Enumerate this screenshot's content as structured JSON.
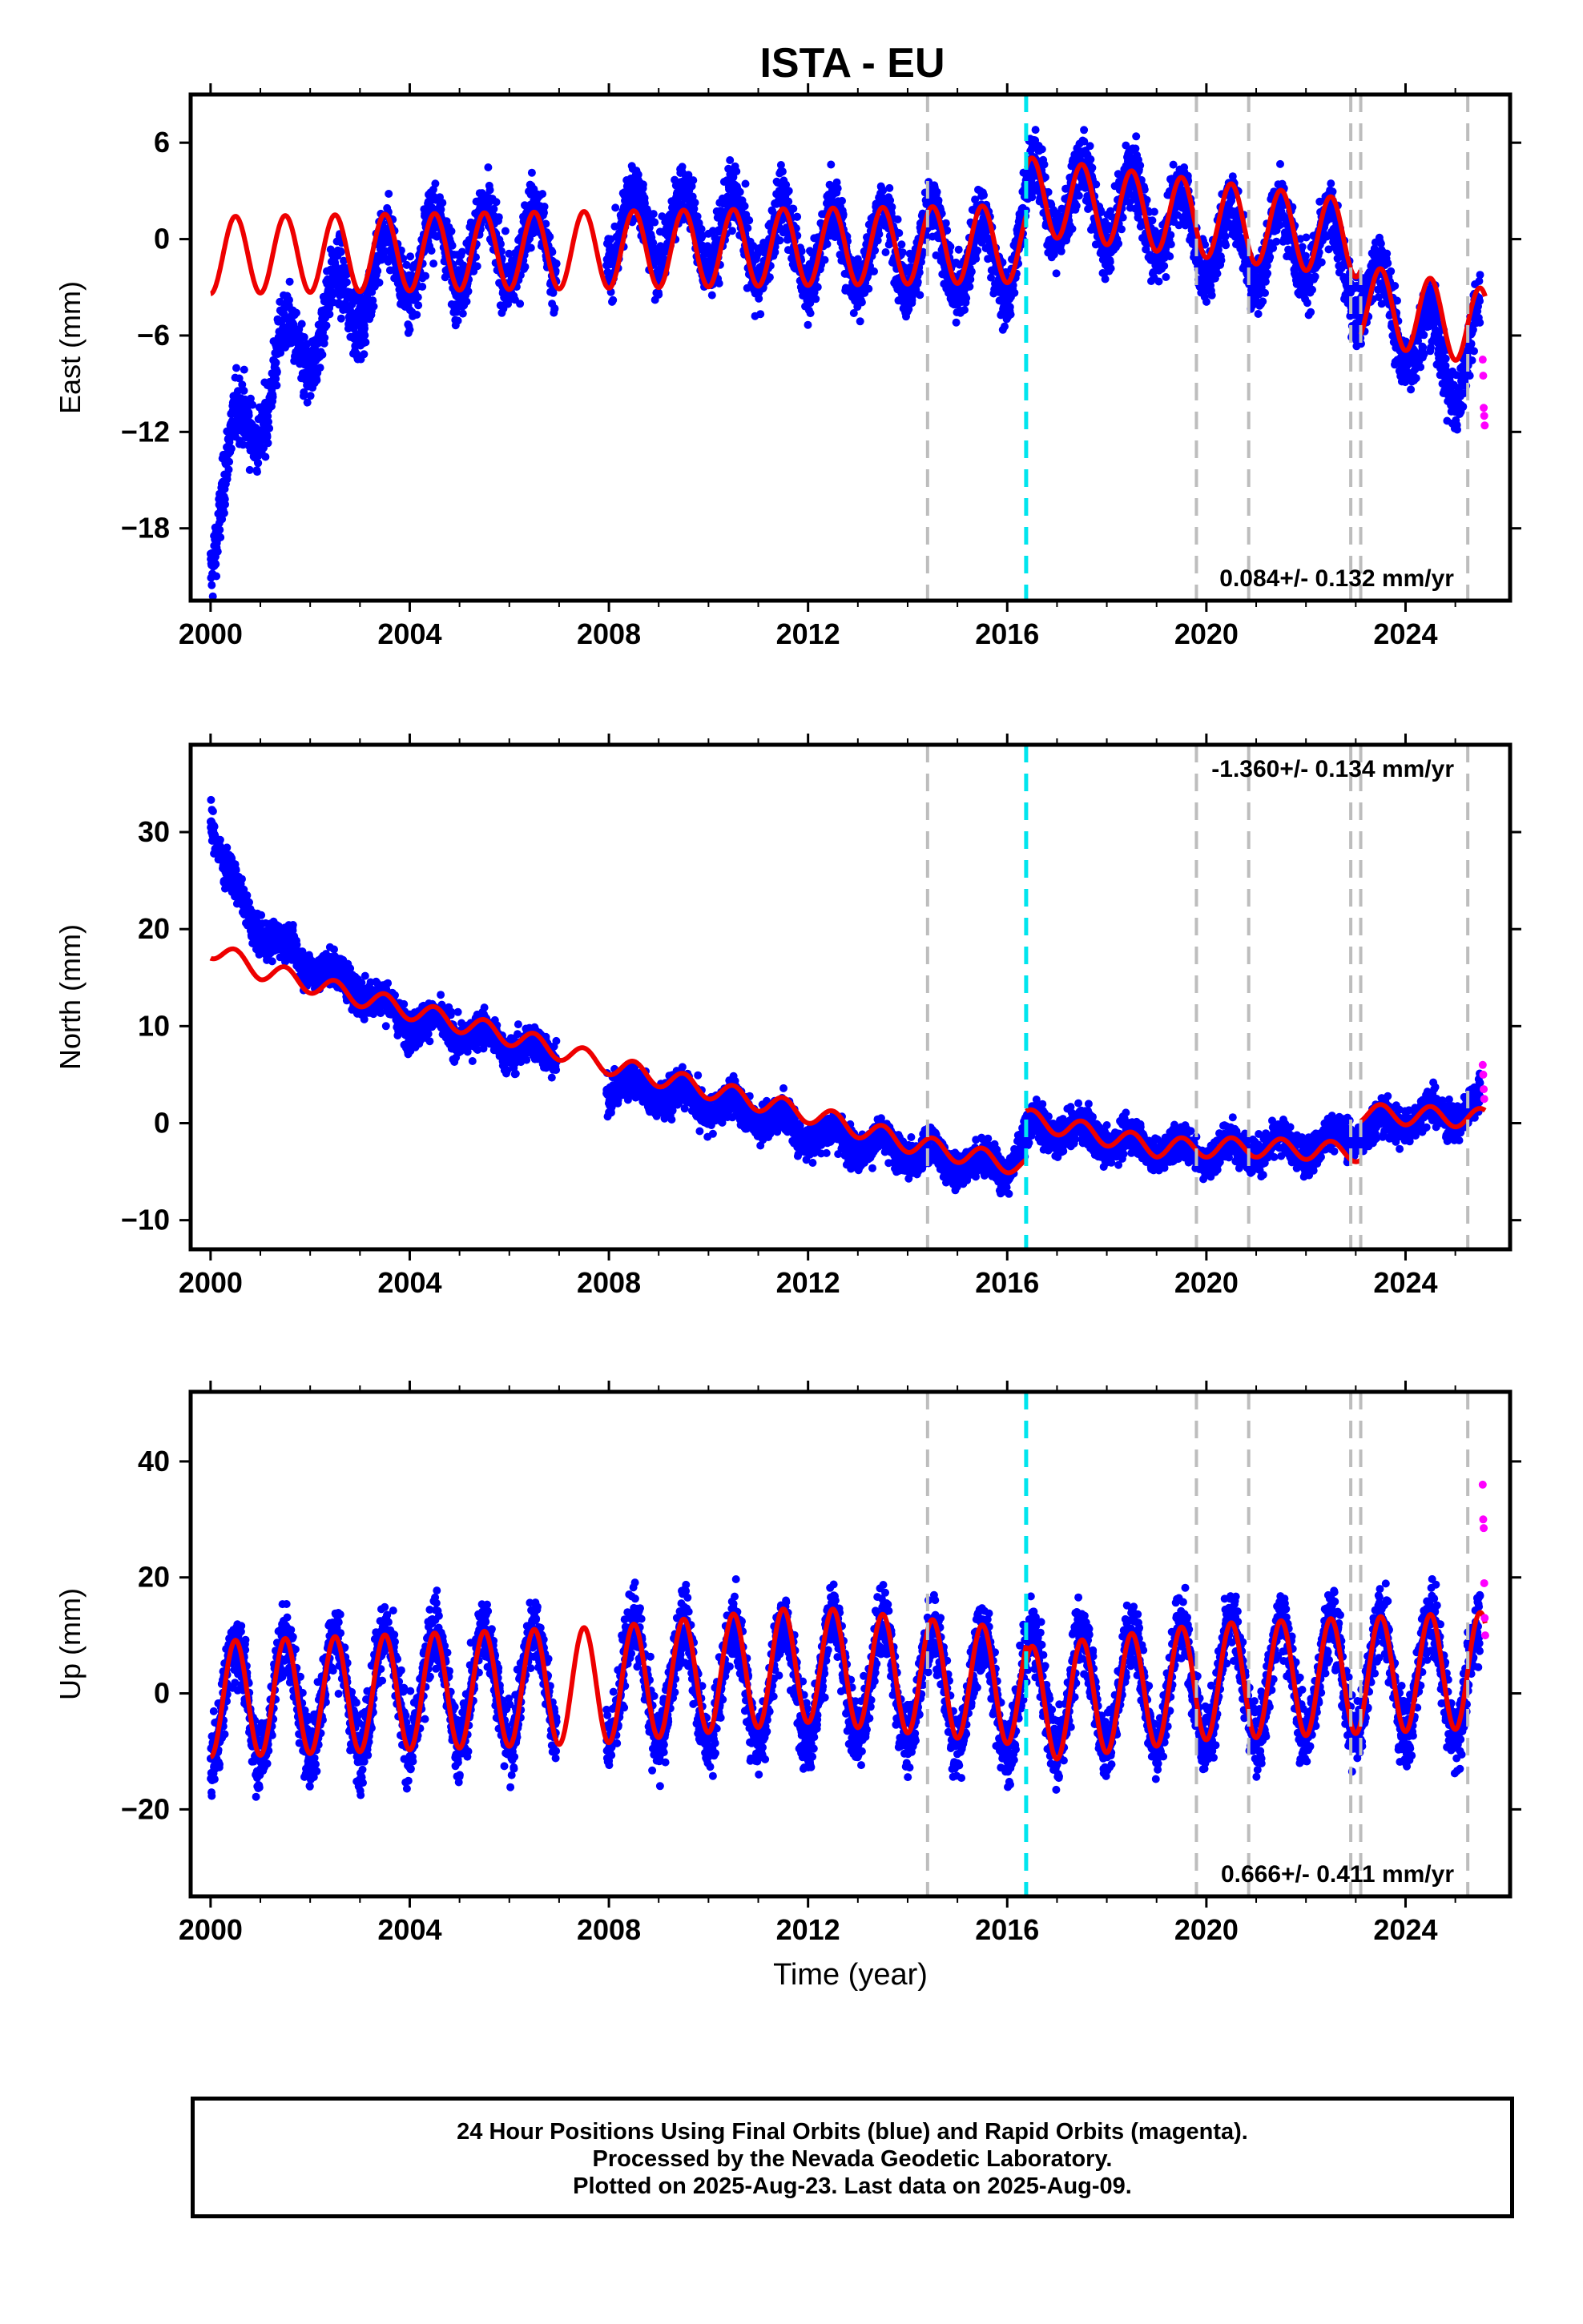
{
  "chart_data": [
    {
      "type": "scatter",
      "title": "ISTA - EU",
      "xlabel": "",
      "ylabel": "East (mm)",
      "xlim": [
        1999.6,
        2026.1
      ],
      "ylim": [
        -22.5,
        9.0
      ],
      "xticks": [
        2000,
        2004,
        2008,
        2012,
        2016,
        2020,
        2024
      ],
      "yticks": [
        -18,
        -12,
        -6,
        0,
        6
      ],
      "rate_label": "0.084+/- 0.132 mm/yr",
      "rate_position": "bottom-right",
      "grid": false,
      "series": [
        {
          "x": [
            2000.0,
            2000.5,
            2001.0,
            2001.5,
            2002.0,
            2002.5,
            2003.0,
            2003.5,
            2004.0,
            2005.0,
            2006.0,
            2007.0,
            2008.0,
            2009.0,
            2010.0,
            2011.0,
            2012.0,
            2013.0,
            2014.0,
            2015.0,
            2016.0,
            2016.5,
            2017.0,
            2018.0,
            2019.0,
            2020.0,
            2021.0,
            2022.0,
            2023.0,
            2023.5,
            2024.0,
            2024.5,
            2025.0,
            2025.5
          ],
          "y": [
            -18.5,
            -13.0,
            -10.0,
            -7.5,
            -6.0,
            -4.5,
            -3.0,
            -2.0,
            -1.0,
            -0.5,
            -0.5,
            -0.5,
            0.5,
            1.0,
            0.5,
            0.0,
            -0.5,
            -0.5,
            -0.5,
            -1.0,
            -1.5,
            2.5,
            2.5,
            2.0,
            1.5,
            0.0,
            -0.5,
            0.0,
            -2.0,
            -4.0,
            -5.5,
            -7.0,
            -8.0,
            -6.0
          ]
        }
      ],
      "model": {
        "amplitude": 2.4,
        "segments": [
          {
            "x0": 2000.0,
            "x1": 2016.38,
            "trend": [
              [
                2000.0,
                -1.0
              ],
              [
                2016.38,
                -0.3
              ]
            ]
          },
          {
            "x0": 2016.38,
            "x1": 2023.1,
            "trend": [
              [
                2016.38,
                2.7
              ],
              [
                2023.1,
                0.0
              ]
            ]
          },
          {
            "x0": 2023.1,
            "x1": 2025.6,
            "trend": [
              [
                2023.1,
                -4.0
              ],
              [
                2025.6,
                -5.5
              ]
            ]
          }
        ]
      },
      "rapid": {
        "x": [
          2025.55,
          2025.56,
          2025.57,
          2025.58,
          2025.59
        ],
        "y": [
          -7.5,
          -8.5,
          -10.5,
          -11.0,
          -11.6
        ]
      },
      "step_lines": [
        2014.4,
        2019.8,
        2020.85,
        2022.9,
        2023.1,
        2025.25
      ],
      "equipment_lines": [
        2016.38
      ]
    },
    {
      "type": "scatter",
      "title": "",
      "xlabel": "",
      "ylabel": "North (mm)",
      "xlim": [
        1999.6,
        2026.1
      ],
      "ylim": [
        -13.0,
        39.0
      ],
      "xticks": [
        2000,
        2004,
        2008,
        2012,
        2016,
        2020,
        2024
      ],
      "yticks": [
        -10,
        0,
        10,
        20,
        30
      ],
      "rate_label": "-1.360+/- 0.134 mm/yr",
      "rate_position": "top-right",
      "grid": false,
      "series": [
        {
          "x": [
            2000.0,
            2000.3,
            2000.7,
            2001.0,
            2001.5,
            2002.0,
            2002.5,
            2003.0,
            2003.5,
            2004.0,
            2005.0,
            2006.0,
            2007.0,
            2008.0,
            2009.0,
            2010.0,
            2011.0,
            2012.0,
            2013.0,
            2014.0,
            2015.0,
            2016.0,
            2016.5,
            2017.0,
            2018.0,
            2019.0,
            2020.0,
            2021.0,
            2022.0,
            2023.0,
            2024.0,
            2025.0,
            2025.5
          ],
          "y": [
            32.0,
            26.0,
            22.0,
            20.0,
            18.0,
            16.5,
            15.0,
            14.0,
            12.0,
            10.5,
            9.5,
            8.0,
            7.0,
            4.0,
            3.0,
            2.0,
            1.0,
            -1.0,
            -2.0,
            -3.0,
            -4.0,
            -4.5,
            -0.5,
            -0.5,
            -1.5,
            -2.5,
            -3.0,
            -2.5,
            -2.5,
            -1.0,
            0.5,
            1.0,
            2.0
          ]
        }
      ],
      "model": {
        "amplitude": 1.0,
        "segments": [
          {
            "x0": 2000.0,
            "x1": 2016.38,
            "trend": [
              [
                2000.0,
                18.0
              ],
              [
                2001.0,
                15.8
              ],
              [
                2003.0,
                13.0
              ],
              [
                2006.0,
                9.0
              ],
              [
                2008.0,
                6.0
              ],
              [
                2010.0,
                3.5
              ],
              [
                2012.0,
                1.0
              ],
              [
                2014.0,
                -2.0
              ],
              [
                2016.38,
                -4.5
              ]
            ]
          },
          {
            "x0": 2016.38,
            "x1": 2023.1,
            "trend": [
              [
                2016.38,
                0.5
              ],
              [
                2019.0,
                -2.5
              ],
              [
                2021.0,
                -2.5
              ],
              [
                2023.1,
                -3.0
              ]
            ]
          },
          {
            "x0": 2023.1,
            "x1": 2025.6,
            "trend": [
              [
                2023.1,
                1.0
              ],
              [
                2025.6,
                0.5
              ]
            ]
          }
        ]
      },
      "rapid": {
        "x": [
          2025.55,
          2025.56,
          2025.57,
          2025.58
        ],
        "y": [
          6.0,
          5.0,
          3.5,
          2.5
        ]
      },
      "step_lines": [
        2014.4,
        2019.8,
        2020.85,
        2022.9,
        2023.1,
        2025.25
      ],
      "equipment_lines": [
        2016.38
      ]
    },
    {
      "type": "scatter",
      "title": "",
      "xlabel": "Time (year)",
      "ylabel": "Up (mm)",
      "xlim": [
        1999.6,
        2026.1
      ],
      "ylim": [
        -35.0,
        52.0
      ],
      "xticks": [
        2000,
        2004,
        2008,
        2012,
        2016,
        2020,
        2024
      ],
      "yticks": [
        -20,
        0,
        20,
        40
      ],
      "rate_label": "0.666+/- 0.411 mm/yr",
      "rate_position": "bottom-right",
      "grid": false,
      "series": [
        {
          "x": [
            2000.0,
            2002.0,
            2004.0,
            2006.0,
            2008.0,
            2010.0,
            2012.0,
            2014.0,
            2016.0,
            2018.0,
            2020.0,
            2022.0,
            2024.0,
            2025.5
          ],
          "y": [
            -2.0,
            0.0,
            1.0,
            1.5,
            2.0,
            1.5,
            2.5,
            2.0,
            0.0,
            0.5,
            2.0,
            2.5,
            3.0,
            3.0
          ]
        }
      ],
      "model": {
        "amplitude": 10.0,
        "segments": [
          {
            "x0": 2000.0,
            "x1": 2016.38,
            "trend": [
              [
                2000.0,
                -1.0
              ],
              [
                2008.0,
                1.5
              ],
              [
                2012.0,
                5.0
              ],
              [
                2016.38,
                1.0
              ]
            ]
          },
          {
            "x0": 2016.38,
            "x1": 2025.6,
            "trend": [
              [
                2016.38,
                -2.0
              ],
              [
                2020.0,
                2.0
              ],
              [
                2025.6,
                4.0
              ]
            ]
          }
        ]
      },
      "rapid": {
        "x": [
          2025.55,
          2025.56,
          2025.57,
          2025.58,
          2025.59,
          2025.6
        ],
        "y": [
          36.0,
          30.0,
          28.5,
          19.0,
          13.0,
          10.0
        ]
      },
      "step_lines": [
        2014.4,
        2019.8,
        2020.85,
        2022.9,
        2023.1,
        2025.25
      ],
      "equipment_lines": [
        2016.38
      ]
    }
  ],
  "colors": {
    "final_orbits": "#0000ff",
    "rapid_orbits": "#ff00ff",
    "model": "#ee0000",
    "step_line": "#bdbdbd",
    "equipment_line": "#00e5ee"
  },
  "footer": {
    "line1": "24 Hour Positions Using Final Orbits (blue) and Rapid Orbits (magenta).",
    "line2": "Processed by the Nevada Geodetic Laboratory.",
    "line3": "Plotted on 2025-Aug-23. Last data on 2025-Aug-09."
  }
}
